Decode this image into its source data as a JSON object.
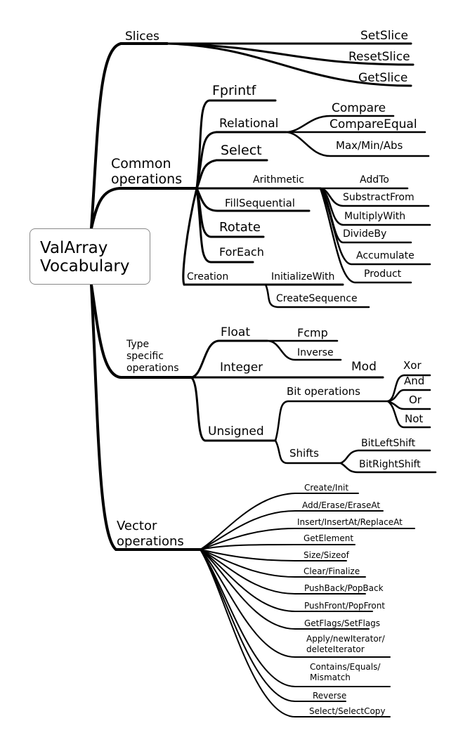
{
  "root": {
    "line1": "ValArray",
    "line2": "Vocabulary"
  },
  "slices": {
    "label": "Slices",
    "children": [
      "SetSlice",
      "ResetSlice",
      "GetSlice"
    ]
  },
  "common": {
    "label1": "Common",
    "label2": "operations",
    "fprintf": "Fprintf",
    "relational": {
      "label": "Relational",
      "children": [
        "Compare",
        "CompareEqual",
        "Max/Min/Abs"
      ]
    },
    "select": "Select",
    "arithmetic": {
      "label": "Arithmetic",
      "children": [
        "AddTo",
        "SubstractFrom",
        "MultiplyWith",
        "DivideBy",
        "Accumulate",
        "Product"
      ]
    },
    "fill": "FillSequential",
    "rotate": "Rotate",
    "foreach": "ForEach",
    "creation": {
      "label": "Creation",
      "children": [
        "InitializeWith",
        "CreateSequence"
      ]
    }
  },
  "type_specific": {
    "label1": "Type",
    "label2": "specific",
    "label3": "operations",
    "float": {
      "label": "Float",
      "children": [
        "Fcmp",
        "Inverse"
      ]
    },
    "integer": {
      "label": "Integer",
      "children": [
        "Mod"
      ]
    },
    "unsigned": {
      "label": "Unsigned",
      "bit_operations": {
        "label": "Bit operations",
        "children": [
          "Xor",
          "And",
          "Or",
          "Not"
        ]
      },
      "shifts": {
        "label": "Shifts",
        "children": [
          "BitLeftShift",
          "BitRightShift"
        ]
      }
    }
  },
  "vector": {
    "label1": "Vector",
    "label2": "operations",
    "items": [
      "Create/Init",
      "Add/Erase/EraseAt",
      "Insert/InsertAt/ReplaceAt",
      "GetElement",
      "Size/Sizeof",
      "Clear/Finalize",
      "PushBack/PopBack",
      "PushFront/PopFront",
      "GetFlags/SetFlags"
    ],
    "apply": {
      "line1": "Apply/newIterator/",
      "line2": "deleteIterator"
    },
    "contains": {
      "line1": "Contains/Equals/",
      "line2": "Mismatch"
    },
    "items2": [
      "Reverse",
      "Select/SelectCopy"
    ]
  }
}
